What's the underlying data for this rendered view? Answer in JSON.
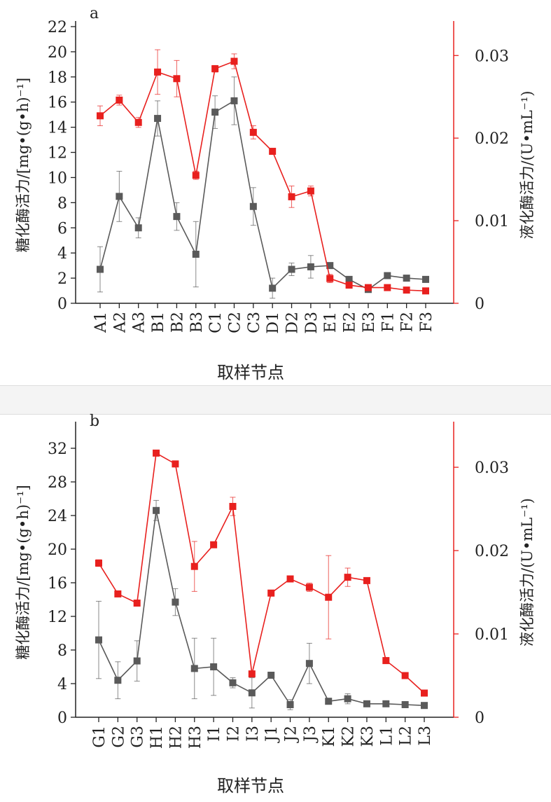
{
  "chart_data": [
    {
      "type": "line",
      "panel_label": "a",
      "categories": [
        "A1",
        "A2",
        "A3",
        "B1",
        "B2",
        "B3",
        "C1",
        "C2",
        "C3",
        "D1",
        "D2",
        "D3",
        "E1",
        "E2",
        "E3",
        "F1",
        "F2",
        "F3"
      ],
      "xlabel": "取样节点",
      "ylabel": "糖化酶活力/[mg•(g•h)⁻¹]",
      "y2label": "液化酶活力/(U•mL⁻¹)",
      "ylim": [
        0,
        22
      ],
      "yticks": [
        0,
        2,
        4,
        6,
        8,
        10,
        12,
        14,
        16,
        18,
        20,
        22
      ],
      "y2lim": [
        0,
        0.0335
      ],
      "y2ticks": [
        "0",
        "0.01",
        "0.02",
        "0.03"
      ],
      "series": [
        {
          "name": "糖化酶活力",
          "axis": "left",
          "color": "#5a5a5a",
          "values": [
            2.7,
            8.5,
            6.0,
            14.7,
            6.9,
            3.9,
            15.2,
            16.1,
            7.7,
            1.2,
            2.7,
            2.9,
            3.0,
            1.9,
            1.1,
            2.2,
            2.0,
            1.9
          ],
          "errors": [
            1.8,
            2.0,
            0.8,
            1.4,
            1.1,
            2.6,
            1.3,
            1.9,
            1.5,
            0.8,
            0.5,
            0.9,
            0.2,
            0.2,
            0.2,
            0.2,
            0.2,
            0.2
          ]
        },
        {
          "name": "液化酶活力",
          "axis": "right",
          "color": "#e8201e",
          "values": [
            0.0227,
            0.0246,
            0.0219,
            0.028,
            0.0272,
            0.0155,
            0.0284,
            0.0293,
            0.0207,
            0.0184,
            0.0129,
            0.0136,
            0.003,
            0.0022,
            0.0019,
            0.0019,
            0.0016,
            0.0015
          ],
          "errors": [
            0.0012,
            0.0006,
            0.0006,
            0.0027,
            0.0022,
            0.0005,
            0.0004,
            0.0009,
            0.0008,
            0.0002,
            0.0013,
            0.0006,
            0.0005,
            0.0002,
            0.0002,
            0.0002,
            0.0002,
            0.0002
          ]
        }
      ]
    },
    {
      "type": "line",
      "panel_label": "b",
      "categories": [
        "G1",
        "G2",
        "G3",
        "H1",
        "H2",
        "H3",
        "I1",
        "I2",
        "I3",
        "J1",
        "J2",
        "J3",
        "K1",
        "K2",
        "K3",
        "L1",
        "L2",
        "L3"
      ],
      "xlabel": "取样节点",
      "ylabel": "糖化酶活力/[mg•(g•h)⁻¹]",
      "y2label": "液化酶活力/(U•mL⁻¹)",
      "ylim": [
        0,
        34.5
      ],
      "yticks": [
        0,
        4,
        8,
        12,
        16,
        20,
        24,
        28,
        32
      ],
      "y2lim": [
        0,
        0.0348
      ],
      "y2ticks": [
        "0",
        "0.01",
        "0.02",
        "0.03"
      ],
      "series": [
        {
          "name": "糖化酶活力",
          "axis": "left",
          "color": "#5a5a5a",
          "values": [
            9.2,
            4.4,
            6.7,
            24.6,
            13.7,
            5.8,
            6.0,
            4.1,
            2.9,
            5.0,
            1.5,
            6.4,
            1.9,
            2.2,
            1.6,
            1.6,
            1.5,
            1.4
          ],
          "errors": [
            4.6,
            2.2,
            2.4,
            1.2,
            1.6,
            3.6,
            3.4,
            0.6,
            1.8,
            0.2,
            0.6,
            2.4,
            0.2,
            0.6,
            0.2,
            0.2,
            0.2,
            0.2
          ]
        },
        {
          "name": "液化酶活力",
          "axis": "right",
          "color": "#e8201e",
          "values": [
            0.0185,
            0.0148,
            0.0137,
            0.0317,
            0.0304,
            0.0181,
            0.0207,
            0.0253,
            0.0052,
            0.0149,
            0.0166,
            0.0156,
            0.0144,
            0.0168,
            0.0164,
            0.0068,
            0.005,
            0.0029
          ],
          "errors": [
            0.0004,
            0.0002,
            0.0002,
            0.0002,
            0.0002,
            0.003,
            0.0003,
            0.0011,
            0.0003,
            0.0002,
            0.0002,
            0.0005,
            0.005,
            0.0011,
            0.0002,
            0.0002,
            0.0002,
            0.0002
          ]
        }
      ]
    }
  ]
}
